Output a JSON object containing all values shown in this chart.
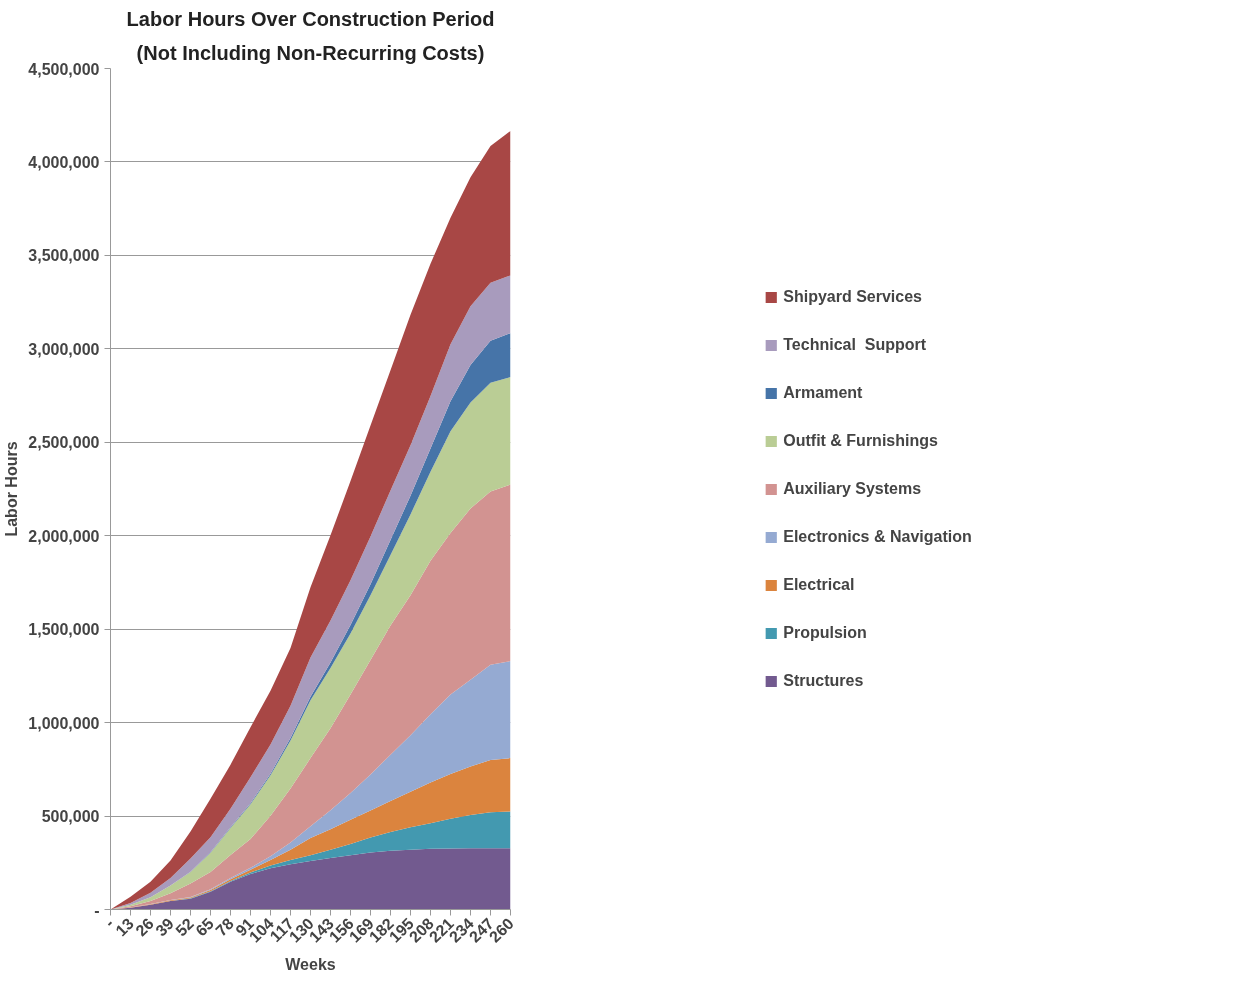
{
  "chart_data": {
    "type": "area",
    "stacked": true,
    "title": "Labor Hours Over Construction Period",
    "subtitle": "(Not Including Non-Recurring Costs)",
    "xlabel": "Weeks",
    "ylabel": "Labor Hours",
    "x": [
      0,
      13,
      26,
      39,
      52,
      65,
      78,
      91,
      104,
      117,
      130,
      143,
      156,
      169,
      182,
      195,
      208,
      221,
      234,
      247,
      260
    ],
    "xlim": [
      0,
      260
    ],
    "xticks": [
      {
        "value": 0,
        "label": "-"
      },
      13,
      26,
      39,
      52,
      65,
      78,
      91,
      104,
      117,
      130,
      143,
      156,
      169,
      182,
      195,
      208,
      221,
      234,
      247,
      260
    ],
    "ylim": [
      0,
      4500000
    ],
    "yticks": [
      {
        "value": 0,
        "label": "-"
      },
      {
        "value": 500000,
        "label": "500,000"
      },
      {
        "value": 1000000,
        "label": "1,000,000"
      },
      {
        "value": 1500000,
        "label": "1,500,000"
      },
      {
        "value": 2000000,
        "label": "2,000,000"
      },
      {
        "value": 2500000,
        "label": "2,500,000"
      },
      {
        "value": 3000000,
        "label": "3,000,000"
      },
      {
        "value": 3500000,
        "label": "3,500,000"
      },
      {
        "value": 4000000,
        "label": "4,000,000"
      },
      {
        "value": 4500000,
        "label": "4,500,000"
      }
    ],
    "grid": "y",
    "legend": "right",
    "series": [
      {
        "name": "Structures",
        "color": "#725a8f",
        "values": [
          0,
          10000,
          25000,
          45000,
          58000,
          95000,
          149000,
          190000,
          221000,
          242000,
          260000,
          275000,
          290000,
          305000,
          315000,
          320000,
          325000,
          327000,
          328000,
          328000,
          328000
        ]
      },
      {
        "name": "Propulsion",
        "color": "#4399b0",
        "values": [
          0,
          0,
          1000,
          1000,
          2000,
          3000,
          4000,
          8000,
          14000,
          23000,
          30000,
          45000,
          60000,
          80000,
          100000,
          120000,
          137000,
          158000,
          177000,
          192000,
          197000
        ]
      },
      {
        "name": "Electrical",
        "color": "#db843e",
        "values": [
          0,
          1000,
          2000,
          3000,
          4000,
          6000,
          9000,
          15000,
          30000,
          55000,
          93000,
          110000,
          130000,
          145000,
          165000,
          190000,
          218000,
          240000,
          260000,
          280000,
          285000
        ]
      },
      {
        "name": "Electronics & Navigation",
        "color": "#95aad2",
        "values": [
          0,
          0,
          1000,
          2000,
          3000,
          4000,
          6000,
          10000,
          20000,
          38000,
          62000,
          101000,
          144000,
          193000,
          248000,
          303000,
          365000,
          425000,
          465000,
          510000,
          519000
        ]
      },
      {
        "name": "Auxiliary Systems",
        "color": "#d29391",
        "values": [
          0,
          6000,
          16000,
          36000,
          72000,
          93000,
          123000,
          154000,
          217000,
          289000,
          365000,
          439000,
          526000,
          612000,
          692000,
          748000,
          821000,
          865000,
          915000,
          927000,
          945000
        ]
      },
      {
        "name": "Outfit & Furnishings",
        "color": "#bacd95",
        "values": [
          0,
          8000,
          20000,
          41000,
          62000,
          103000,
          145000,
          186000,
          216000,
          257000,
          309000,
          322000,
          327000,
          346000,
          377000,
          433000,
          476000,
          544000,
          568000,
          581000,
          575000
        ]
      },
      {
        "name": "Armament",
        "color": "#4674a8",
        "values": [
          0,
          0,
          0,
          0,
          1000,
          2000,
          4000,
          6000,
          9000,
          14000,
          20000,
          30000,
          45000,
          60000,
          80000,
          100000,
          125000,
          160000,
          200000,
          225000,
          235000
        ]
      },
      {
        "name": "Technical  Support",
        "color": "#a89bbd",
        "values": [
          0,
          10000,
          25000,
          41000,
          71000,
          80000,
          99000,
          138000,
          156000,
          172000,
          210000,
          225000,
          240000,
          255000,
          265000,
          270000,
          280000,
          305000,
          315000,
          310000,
          309000
        ]
      },
      {
        "name": "Shipyard Services",
        "color": "#a84745",
        "values": [
          0,
          33000,
          58000,
          93000,
          144000,
          206000,
          236000,
          268000,
          288000,
          309000,
          375000,
          455000,
          531000,
          594000,
          644000,
          699000,
          708000,
          678000,
          690000,
          732000,
          773000
        ]
      }
    ]
  }
}
